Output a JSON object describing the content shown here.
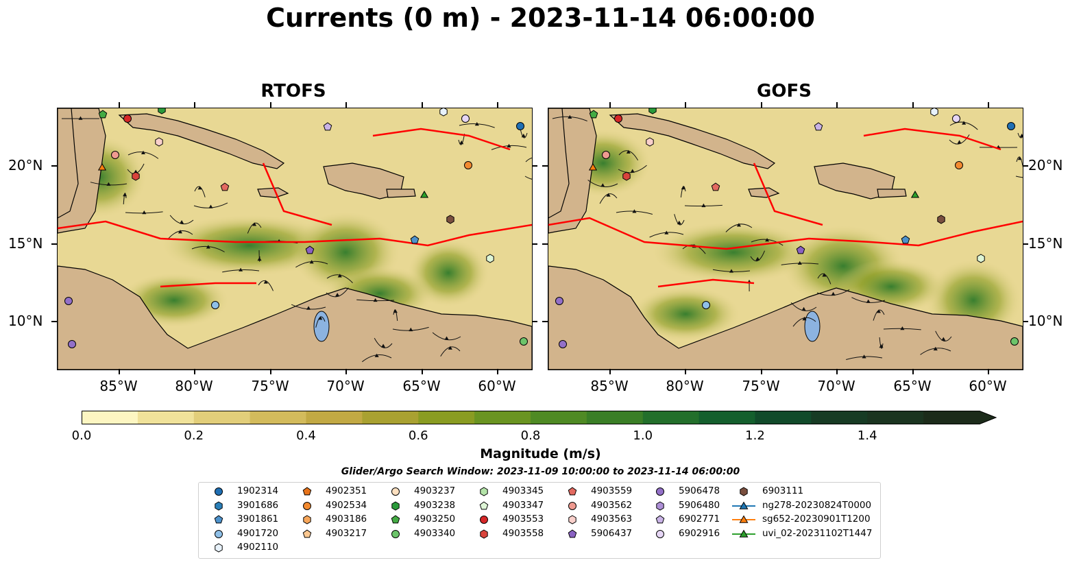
{
  "title": "Currents (0 m) - 2023-11-14 06:00:00",
  "panels": [
    {
      "title": "RTOFS"
    },
    {
      "title": "GOFS"
    }
  ],
  "lat_labels": [
    "20°N",
    "15°N",
    "10°N"
  ],
  "lon_labels": [
    "85°W",
    "80°W",
    "75°W",
    "70°W",
    "65°W",
    "60°W"
  ],
  "colorbar": {
    "label": "Magnitude (m/s)",
    "ticks": [
      "0.0",
      "0.2",
      "0.4",
      "0.6",
      "0.8",
      "1.0",
      "1.2",
      "1.4"
    ],
    "colors": [
      "#fdf6c2",
      "#f0e29a",
      "#e2ce7a",
      "#d3bb5c",
      "#c2a944",
      "#a9a131",
      "#8a9c22",
      "#6a9421",
      "#4f8a24",
      "#3a7e26",
      "#236f2b",
      "#145f2d",
      "#114a2a",
      "#173b24",
      "#1b3420",
      "#1c2b1a"
    ]
  },
  "search_window": "Glider/Argo Search Window: 2023-11-09 10:00:00 to 2023-11-14 06:00:00",
  "legend": [
    {
      "label": "1902314",
      "marker": "circle",
      "color": "#1f6fb4"
    },
    {
      "label": "3901686",
      "marker": "hexagon",
      "color": "#2a7fb8"
    },
    {
      "label": "3901861",
      "marker": "pentagon",
      "color": "#4d92cc"
    },
    {
      "label": "4901720",
      "marker": "circle",
      "color": "#8fc0e8"
    },
    {
      "label": "4902110",
      "marker": "hexagon",
      "color": "#e8f2fb"
    },
    {
      "label": "4902351",
      "marker": "pentagon",
      "color": "#e8731a"
    },
    {
      "label": "4902534",
      "marker": "circle",
      "color": "#f28a30"
    },
    {
      "label": "4903186",
      "marker": "hexagon",
      "color": "#f7a65a"
    },
    {
      "label": "4903217",
      "marker": "pentagon",
      "color": "#fbc891"
    },
    {
      "label": "4903237",
      "marker": "circle",
      "color": "#fde0c0"
    },
    {
      "label": "4903238",
      "marker": "hexagon",
      "color": "#2a9a3a"
    },
    {
      "label": "4903250",
      "marker": "pentagon",
      "color": "#44ab44"
    },
    {
      "label": "4903340",
      "marker": "circle",
      "color": "#6cc46a"
    },
    {
      "label": "4903345",
      "marker": "hexagon",
      "color": "#b3e3a8"
    },
    {
      "label": "4903347",
      "marker": "pentagon",
      "color": "#def5d6"
    },
    {
      "label": "4903553",
      "marker": "circle",
      "color": "#d62728"
    },
    {
      "label": "4903558",
      "marker": "hexagon",
      "color": "#d9443c"
    },
    {
      "label": "4903559",
      "marker": "pentagon",
      "color": "#e36a60"
    },
    {
      "label": "4903562",
      "marker": "circle",
      "color": "#ef9a90"
    },
    {
      "label": "4903563",
      "marker": "hexagon",
      "color": "#f9d0cb"
    },
    {
      "label": "5906437",
      "marker": "pentagon",
      "color": "#8a62c2"
    },
    {
      "label": "5906478",
      "marker": "circle",
      "color": "#9370c8"
    },
    {
      "label": "5906480",
      "marker": "hexagon",
      "color": "#ad8fd6"
    },
    {
      "label": "6902771",
      "marker": "pentagon",
      "color": "#c9b3e6"
    },
    {
      "label": "6902916",
      "marker": "circle",
      "color": "#e6d6f5"
    },
    {
      "label": "6903111",
      "marker": "hexagon",
      "color": "#7a4f3f"
    },
    {
      "label": "ng278-20230824T0000",
      "marker": "triangle-line",
      "color": "#1f77b4"
    },
    {
      "label": "sg652-20230901T1200",
      "marker": "triangle-line",
      "color": "#ff7f0e"
    },
    {
      "label": "uvi_02-20231102T1447",
      "marker": "triangle-line",
      "color": "#2ca02c"
    }
  ]
}
